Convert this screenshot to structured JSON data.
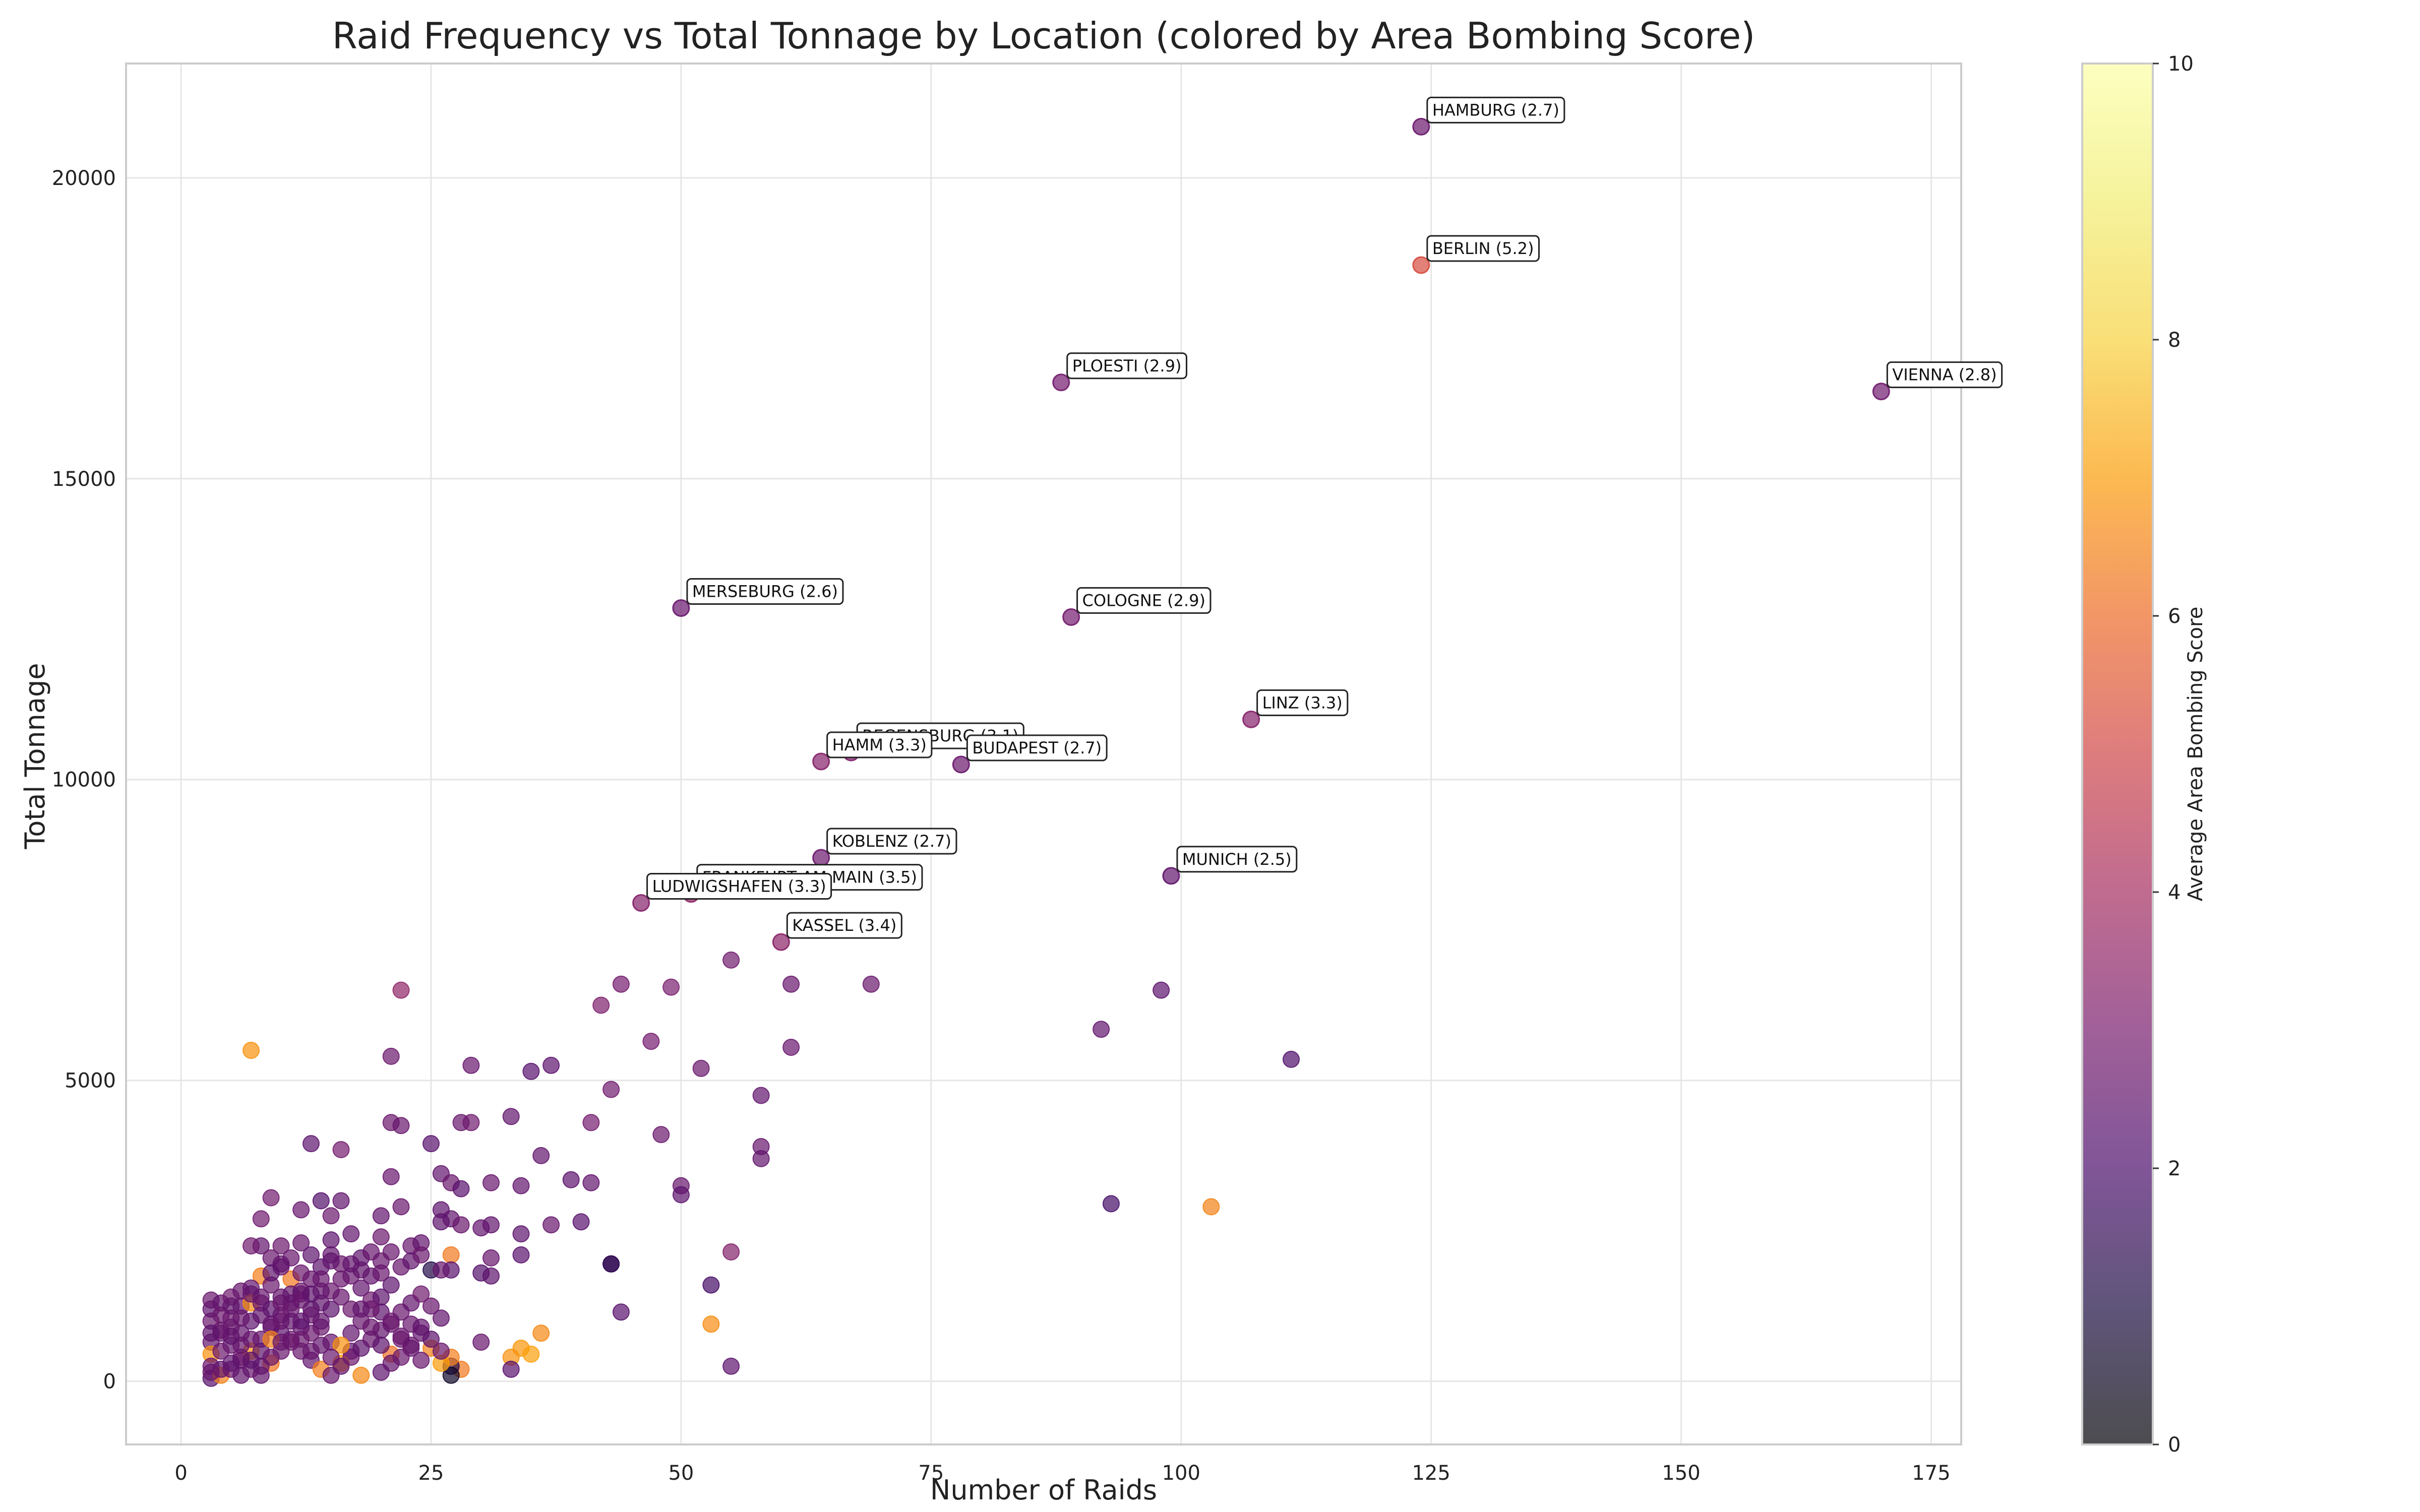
{
  "chart_data": {
    "type": "scatter",
    "title": "Raid Frequency vs Total Tonnage by Location (colored by Area Bombing Score)",
    "xlabel": "Number of Raids",
    "ylabel": "Total Tonnage",
    "xlim": [
      -5.5,
      178
    ],
    "ylim": [
      -1050,
      21900
    ],
    "x_ticks": [
      0,
      25,
      50,
      75,
      100,
      125,
      150,
      175
    ],
    "y_ticks": [
      0,
      5000,
      10000,
      15000,
      20000
    ],
    "grid": true,
    "colorbar": {
      "label": "Average Area Bombing Score",
      "range": [
        0,
        10
      ],
      "ticks": [
        0,
        2,
        4,
        6,
        8,
        10
      ],
      "colormap": "inferno",
      "alpha": 0.7
    },
    "labeled_points": [
      {
        "label": "HAMBURG (2.7)",
        "x": 124,
        "y": 20850,
        "score": 2.7
      },
      {
        "label": "BERLIN (5.2)",
        "x": 124,
        "y": 18550,
        "score": 5.2
      },
      {
        "label": "PLOESTI (2.9)",
        "x": 88,
        "y": 16600,
        "score": 2.9
      },
      {
        "label": "VIENNA (2.8)",
        "x": 170,
        "y": 16450,
        "score": 2.8
      },
      {
        "label": "MERSEBURG (2.6)",
        "x": 50,
        "y": 12850,
        "score": 2.6
      },
      {
        "label": "COLOGNE (2.9)",
        "x": 89,
        "y": 12700,
        "score": 2.9
      },
      {
        "label": "LINZ (3.3)",
        "x": 107,
        "y": 11000,
        "score": 3.3
      },
      {
        "label": "REGENSBURG (3.1)",
        "x": 67,
        "y": 10450,
        "score": 3.1
      },
      {
        "label": "HAMM (3.3)",
        "x": 64,
        "y": 10300,
        "score": 3.3
      },
      {
        "label": "BUDAPEST (2.7)",
        "x": 78,
        "y": 10250,
        "score": 2.7
      },
      {
        "label": "KOBLENZ (2.7)",
        "x": 64,
        "y": 8700,
        "score": 2.7
      },
      {
        "label": "MUNICH (2.5)",
        "x": 99,
        "y": 8400,
        "score": 2.5
      },
      {
        "label": "FRANKFURT AM MAIN (3.5)",
        "x": 51,
        "y": 8100,
        "score": 3.5
      },
      {
        "label": "LUDWIGSHAFEN (3.3)",
        "x": 46,
        "y": 7950,
        "score": 3.3
      },
      {
        "label": "KASSEL (3.4)",
        "x": 60,
        "y": 7300,
        "score": 3.4
      }
    ],
    "points": [
      [
        55,
        7000,
        2.8
      ],
      [
        61,
        6600,
        2.6
      ],
      [
        69,
        6600,
        2.7
      ],
      [
        44,
        6600,
        2.9
      ],
      [
        49,
        6550,
        3.0
      ],
      [
        42,
        6250,
        3.1
      ],
      [
        22,
        6500,
        3.5
      ],
      [
        98,
        6500,
        2.4
      ],
      [
        92,
        5850,
        2.5
      ],
      [
        111,
        5350,
        2.1
      ],
      [
        93,
        2950,
        1.9
      ],
      [
        103,
        2900,
        6.5
      ],
      [
        47,
        5650,
        2.9
      ],
      [
        52,
        5200,
        2.7
      ],
      [
        61,
        5550,
        2.6
      ],
      [
        58,
        4750,
        2.5
      ],
      [
        37,
        5250,
        2.4
      ],
      [
        35,
        5150,
        2.3
      ],
      [
        29,
        5250,
        2.6
      ],
      [
        21,
        5400,
        2.7
      ],
      [
        7,
        5500,
        6.8
      ],
      [
        43,
        4850,
        2.8
      ],
      [
        33,
        4400,
        2.5
      ],
      [
        41,
        4300,
        2.9
      ],
      [
        48,
        4100,
        2.7
      ],
      [
        58,
        3900,
        2.6
      ],
      [
        58,
        3700,
        2.5
      ],
      [
        28,
        4300,
        2.6
      ],
      [
        29,
        4300,
        2.8
      ],
      [
        21,
        4300,
        2.7
      ],
      [
        22,
        4250,
        2.6
      ],
      [
        13,
        3950,
        2.4
      ],
      [
        16,
        3850,
        2.9
      ],
      [
        25,
        3950,
        2.3
      ],
      [
        36,
        3750,
        2.5
      ],
      [
        21,
        3400,
        2.6
      ],
      [
        26,
        3450,
        2.5
      ],
      [
        31,
        3300,
        2.6
      ],
      [
        34,
        3250,
        2.5
      ],
      [
        27,
        3300,
        2.7
      ],
      [
        28,
        3200,
        2.3
      ],
      [
        39,
        3350,
        2.4
      ],
      [
        41,
        3300,
        2.5
      ],
      [
        50,
        3250,
        2.6
      ],
      [
        50,
        3100,
        2.4
      ],
      [
        9,
        3050,
        2.8
      ],
      [
        14,
        3000,
        2.2
      ],
      [
        16,
        3000,
        2.5
      ],
      [
        26,
        2850,
        2.4
      ],
      [
        22,
        2900,
        2.6
      ],
      [
        30,
        2550,
        2.5
      ],
      [
        31,
        2600,
        2.5
      ],
      [
        37,
        2600,
        2.6
      ],
      [
        40,
        2650,
        2.3
      ],
      [
        34,
        2450,
        2.4
      ],
      [
        20,
        2750,
        2.5
      ],
      [
        15,
        2750,
        2.7
      ],
      [
        12,
        2850,
        2.6
      ],
      [
        8,
        2700,
        2.8
      ],
      [
        27,
        2700,
        2.5
      ],
      [
        28,
        2600,
        2.7
      ],
      [
        26,
        2650,
        2.4
      ],
      [
        23,
        2250,
        2.6
      ],
      [
        24,
        2300,
        2.5
      ],
      [
        21,
        2150,
        2.6
      ],
      [
        20,
        2400,
        2.7
      ],
      [
        17,
        2450,
        2.5
      ],
      [
        15,
        2350,
        2.4
      ],
      [
        12,
        2300,
        2.6
      ],
      [
        10,
        2250,
        2.7
      ],
      [
        8,
        2250,
        2.5
      ],
      [
        7,
        2250,
        2.8
      ],
      [
        55,
        2150,
        3.2
      ],
      [
        34,
        2100,
        2.3
      ],
      [
        31,
        2050,
        2.6
      ],
      [
        27,
        2100,
        6.3
      ],
      [
        43,
        1950,
        1.3
      ],
      [
        43,
        1950,
        1.5
      ],
      [
        25,
        1850,
        1.2
      ],
      [
        30,
        1800,
        2.2
      ],
      [
        31,
        1750,
        2.4
      ],
      [
        27,
        1850,
        2.3
      ],
      [
        26,
        1850,
        2.6
      ],
      [
        53,
        1600,
        1.9
      ],
      [
        44,
        1150,
        2.3
      ],
      [
        55,
        250,
        2.4
      ],
      [
        53,
        950,
        6.7
      ],
      [
        36,
        800,
        6.6
      ],
      [
        34,
        550,
        6.9
      ],
      [
        35,
        450,
        7.1
      ],
      [
        33,
        400,
        6.8
      ],
      [
        33,
        200,
        2.3
      ],
      [
        30,
        650,
        2.6
      ],
      [
        28,
        200,
        6.3
      ],
      [
        27,
        250,
        1.2
      ],
      [
        27,
        100,
        0.6
      ],
      [
        27,
        400,
        6.4
      ],
      [
        26,
        300,
        7.0
      ],
      [
        25,
        550,
        6.5
      ],
      [
        24,
        800,
        2.5
      ],
      [
        23,
        950,
        2.6
      ],
      [
        22,
        700,
        2.7
      ],
      [
        21,
        450,
        6.1
      ],
      [
        20,
        150,
        2.4
      ],
      [
        18,
        100,
        6.6
      ],
      [
        17,
        500,
        2.5
      ],
      [
        16,
        300,
        6.9
      ],
      [
        15,
        650,
        2.6
      ],
      [
        14,
        900,
        2.7
      ],
      [
        13,
        1200,
        2.3
      ],
      [
        12,
        1450,
        2.5
      ],
      [
        11,
        1700,
        6.3
      ],
      [
        10,
        1900,
        2.7
      ],
      [
        9,
        2050,
        2.6
      ],
      [
        8,
        1750,
        6.4
      ],
      [
        7,
        1550,
        2.5
      ],
      [
        6,
        1250,
        2.4
      ],
      [
        5,
        1050,
        2.8
      ],
      [
        4,
        850,
        2.7
      ],
      [
        3,
        650,
        2.5
      ],
      [
        3,
        450,
        6.8
      ],
      [
        3,
        250,
        2.6
      ],
      [
        3,
        50,
        2.3
      ],
      [
        4,
        100,
        6.5
      ],
      [
        5,
        200,
        2.7
      ],
      [
        6,
        350,
        2.5
      ],
      [
        7,
        500,
        6.9
      ],
      [
        8,
        700,
        2.6
      ],
      [
        9,
        900,
        2.4
      ],
      [
        10,
        1100,
        2.8
      ],
      [
        11,
        1300,
        2.5
      ],
      [
        12,
        1500,
        2.7
      ],
      [
        13,
        1700,
        2.6
      ],
      [
        14,
        1900,
        2.4
      ],
      [
        15,
        2100,
        2.5
      ],
      [
        16,
        1950,
        2.7
      ],
      [
        17,
        1750,
        2.6
      ],
      [
        18,
        1550,
        2.5
      ],
      [
        19,
        1350,
        2.8
      ],
      [
        20,
        1150,
        2.4
      ],
      [
        21,
        950,
        2.6
      ],
      [
        22,
        750,
        2.7
      ],
      [
        23,
        550,
        2.5
      ],
      [
        24,
        350,
        2.6
      ],
      [
        19,
        1750,
        2.5
      ],
      [
        20,
        2000,
        2.6
      ],
      [
        18,
        2050,
        2.4
      ],
      [
        17,
        1950,
        2.5
      ],
      [
        16,
        1700,
        2.6
      ],
      [
        15,
        1500,
        2.7
      ],
      [
        14,
        1300,
        2.5
      ],
      [
        13,
        1100,
        2.6
      ],
      [
        12,
        900,
        2.4
      ],
      [
        11,
        700,
        2.7
      ],
      [
        10,
        500,
        2.6
      ],
      [
        9,
        300,
        6.2
      ],
      [
        8,
        100,
        2.5
      ],
      [
        7,
        200,
        2.6
      ],
      [
        6,
        400,
        2.8
      ],
      [
        5,
        600,
        2.5
      ],
      [
        4,
        800,
        2.6
      ],
      [
        3,
        1000,
        2.7
      ],
      [
        3,
        1200,
        2.4
      ],
      [
        3,
        1350,
        2.6
      ],
      [
        4,
        1300,
        2.5
      ],
      [
        5,
        1400,
        2.8
      ],
      [
        6,
        1500,
        2.6
      ],
      [
        7,
        1300,
        6.7
      ],
      [
        8,
        1100,
        2.5
      ],
      [
        9,
        950,
        2.6
      ],
      [
        10,
        800,
        2.4
      ],
      [
        11,
        650,
        2.7
      ],
      [
        12,
        500,
        2.6
      ],
      [
        13,
        350,
        2.5
      ],
      [
        14,
        200,
        6.4
      ],
      [
        15,
        100,
        2.6
      ],
      [
        16,
        250,
        2.5
      ],
      [
        17,
        400,
        2.7
      ],
      [
        18,
        550,
        2.4
      ],
      [
        19,
        700,
        2.6
      ],
      [
        20,
        850,
        2.5
      ],
      [
        21,
        1000,
        2.7
      ],
      [
        22,
        1150,
        2.6
      ],
      [
        23,
        1300,
        2.5
      ],
      [
        24,
        1450,
        2.8
      ],
      [
        25,
        1250,
        2.6
      ],
      [
        26,
        1050,
        2.5
      ],
      [
        20,
        1400,
        2.4
      ],
      [
        19,
        1200,
        2.7
      ],
      [
        18,
        1000,
        2.6
      ],
      [
        17,
        800,
        2.5
      ],
      [
        16,
        600,
        6.8
      ],
      [
        15,
        400,
        2.6
      ],
      [
        14,
        600,
        2.5
      ],
      [
        13,
        800,
        2.7
      ],
      [
        12,
        1000,
        2.4
      ],
      [
        11,
        1200,
        2.6
      ],
      [
        10,
        1400,
        2.5
      ],
      [
        9,
        1600,
        2.7
      ],
      [
        8,
        1400,
        2.6
      ],
      [
        7,
        1000,
        2.4
      ],
      [
        6,
        800,
        2.5
      ],
      [
        5,
        900,
        2.6
      ],
      [
        4,
        500,
        2.7
      ],
      [
        6,
        100,
        2.5
      ],
      [
        7,
        700,
        2.6
      ],
      [
        8,
        500,
        2.4
      ],
      [
        9,
        700,
        6.5
      ],
      [
        10,
        1000,
        2.6
      ],
      [
        11,
        1000,
        2.5
      ],
      [
        12,
        700,
        2.7
      ],
      [
        13,
        500,
        2.6
      ],
      [
        14,
        1000,
        2.5
      ],
      [
        15,
        1200,
        2.4
      ],
      [
        16,
        1400,
        2.6
      ],
      [
        17,
        1200,
        2.7
      ],
      [
        18,
        1200,
        2.5
      ],
      [
        19,
        900,
        2.6
      ],
      [
        20,
        600,
        2.4
      ],
      [
        21,
        300,
        2.5
      ],
      [
        22,
        400,
        2.7
      ],
      [
        23,
        600,
        2.6
      ],
      [
        24,
        900,
        2.5
      ],
      [
        25,
        700,
        2.4
      ],
      [
        26,
        500,
        2.6
      ],
      [
        5,
        300,
        2.4
      ],
      [
        4,
        200,
        2.5
      ],
      [
        3,
        150,
        2.6
      ],
      [
        3,
        800,
        2.4
      ],
      [
        4,
        1100,
        2.7
      ],
      [
        5,
        1250,
        2.5
      ],
      [
        6,
        1050,
        2.6
      ],
      [
        7,
        1450,
        2.5
      ],
      [
        8,
        1300,
        2.6
      ],
      [
        9,
        1200,
        2.4
      ],
      [
        10,
        1300,
        2.7
      ],
      [
        11,
        1450,
        2.5
      ],
      [
        12,
        1350,
        2.6
      ],
      [
        13,
        1450,
        2.4
      ],
      [
        14,
        1500,
        2.5
      ],
      [
        10,
        650,
        2.6
      ],
      [
        9,
        400,
        2.7
      ],
      [
        8,
        250,
        2.5
      ],
      [
        7,
        350,
        2.4
      ],
      [
        6,
        600,
        2.6
      ],
      [
        5,
        750,
        2.5
      ],
      [
        22,
        1900,
        2.6
      ],
      [
        23,
        2000,
        2.5
      ],
      [
        24,
        2100,
        2.7
      ],
      [
        19,
        2150,
        2.6
      ],
      [
        18,
        1850,
        2.5
      ],
      [
        21,
        1600,
        2.4
      ],
      [
        20,
        1800,
        2.6
      ],
      [
        15,
        2000,
        2.5
      ],
      [
        14,
        1700,
        2.6
      ],
      [
        13,
        2100,
        2.4
      ],
      [
        12,
        1800,
        2.7
      ],
      [
        11,
        2050,
        2.6
      ],
      [
        10,
        1950,
        2.5
      ],
      [
        9,
        1800,
        2.4
      ]
    ]
  }
}
